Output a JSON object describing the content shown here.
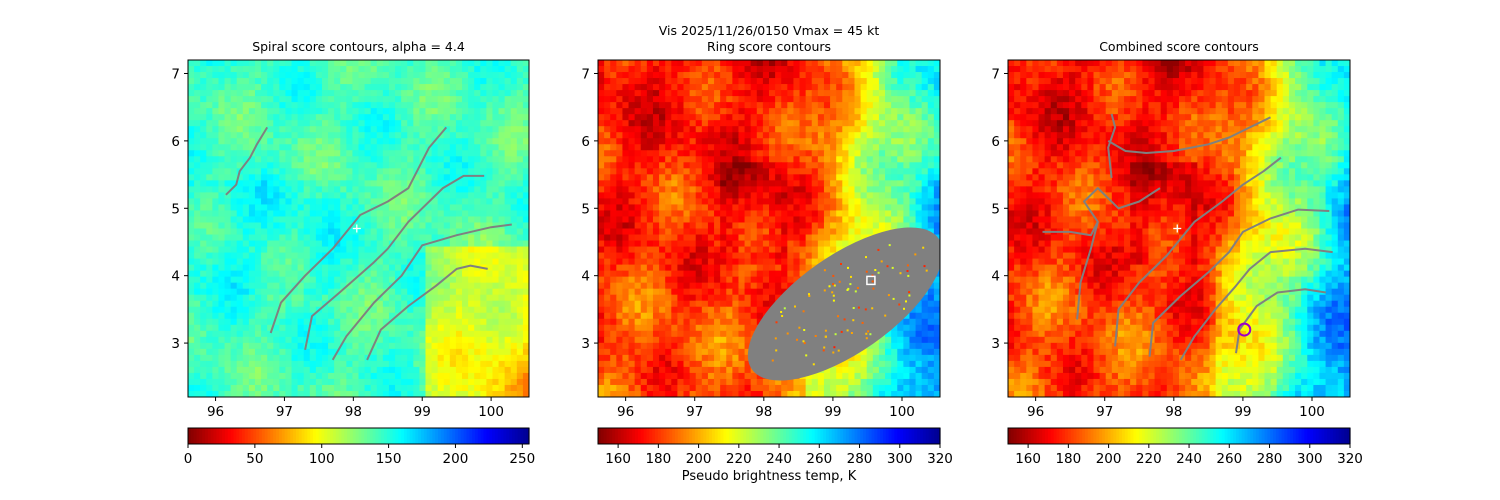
{
  "figure": {
    "suptitle": "Vis  2025/11/26/0150    Vmax = 45 kt"
  },
  "chart_data": [
    {
      "type": "heatmap",
      "id": "spiral",
      "title": "Spiral score contours, alpha =  4.4",
      "xlim": [
        95.6,
        100.55
      ],
      "ylim": [
        2.2,
        7.2
      ],
      "xticks": [
        96,
        97,
        98,
        99,
        100
      ],
      "yticks": [
        3,
        4,
        5,
        6,
        7
      ],
      "colormap": "jet_r",
      "colorbar": {
        "ticks": [
          0,
          50,
          100,
          150,
          200,
          250
        ],
        "range": [
          0,
          255
        ],
        "label": ""
      },
      "center_marker": {
        "type": "plus",
        "x": 98.05,
        "y": 4.7,
        "color": "#ffffff"
      },
      "contours": [
        [
          [
            96.15,
            5.2
          ],
          [
            96.3,
            5.35
          ],
          [
            96.35,
            5.55
          ],
          [
            96.5,
            5.75
          ],
          [
            96.6,
            5.95
          ],
          [
            96.75,
            6.2
          ]
        ],
        [
          [
            96.8,
            3.15
          ],
          [
            96.95,
            3.6
          ],
          [
            97.3,
            4.0
          ],
          [
            97.7,
            4.4
          ],
          [
            98.1,
            4.9
          ],
          [
            98.5,
            5.1
          ],
          [
            98.8,
            5.3
          ],
          [
            99.1,
            5.9
          ],
          [
            99.35,
            6.2
          ]
        ],
        [
          [
            97.3,
            2.9
          ],
          [
            97.4,
            3.4
          ],
          [
            97.8,
            3.75
          ],
          [
            98.3,
            4.2
          ],
          [
            98.5,
            4.4
          ],
          [
            98.8,
            4.8
          ],
          [
            99.3,
            5.3
          ],
          [
            99.6,
            5.48
          ],
          [
            99.9,
            5.48
          ]
        ],
        [
          [
            97.7,
            2.75
          ],
          [
            97.9,
            3.1
          ],
          [
            98.3,
            3.6
          ],
          [
            98.7,
            4.0
          ],
          [
            99.0,
            4.45
          ],
          [
            99.5,
            4.6
          ],
          [
            100.0,
            4.72
          ],
          [
            100.3,
            4.76
          ]
        ],
        [
          [
            98.2,
            2.75
          ],
          [
            98.4,
            3.2
          ],
          [
            98.8,
            3.55
          ],
          [
            99.2,
            3.85
          ],
          [
            99.5,
            4.1
          ],
          [
            99.7,
            4.15
          ],
          [
            99.95,
            4.1
          ]
        ]
      ]
    },
    {
      "type": "heatmap",
      "id": "ring",
      "title": "Ring score contours",
      "xlim": [
        95.6,
        100.55
      ],
      "ylim": [
        2.2,
        7.2
      ],
      "xticks": [
        96,
        97,
        98,
        99,
        100
      ],
      "yticks": [
        3,
        4,
        5,
        6,
        7
      ],
      "colormap": "jet_r",
      "colorbar": {
        "ticks": [
          160,
          180,
          200,
          220,
          240,
          260,
          280,
          300,
          320
        ],
        "range": [
          150,
          320
        ],
        "label": "Pseudo brightness temp, K"
      },
      "ring_region": {
        "color": "#808080",
        "center": [
          99.18,
          3.58
        ],
        "rx": 1.65,
        "ry": 0.72,
        "rotation_deg": 35
      },
      "center_marker": {
        "type": "square",
        "x": 99.55,
        "y": 3.93,
        "color": "#ffffff"
      }
    },
    {
      "type": "heatmap",
      "id": "combined",
      "title": "Combined score contours",
      "xlim": [
        95.6,
        100.55
      ],
      "ylim": [
        2.2,
        7.2
      ],
      "xticks": [
        96,
        97,
        98,
        99,
        100
      ],
      "yticks": [
        3,
        4,
        5,
        6,
        7
      ],
      "colormap": "jet_r",
      "colorbar": {
        "ticks": [
          160,
          180,
          200,
          220,
          240,
          260,
          280,
          300,
          320
        ],
        "range": [
          150,
          320
        ],
        "label": ""
      },
      "center_marker": {
        "type": "plus",
        "x": 98.05,
        "y": 4.7,
        "color": "#ffffff"
      },
      "ring_marker": {
        "type": "circle",
        "x": 99.02,
        "y": 3.2,
        "color": "#9b00c8"
      },
      "contours": [
        [
          [
            96.1,
            4.65
          ],
          [
            96.5,
            4.65
          ],
          [
            96.8,
            4.6
          ],
          [
            96.9,
            4.8
          ],
          [
            96.7,
            5.1
          ],
          [
            96.9,
            5.3
          ],
          [
            97.2,
            5.0
          ],
          [
            97.5,
            5.1
          ],
          [
            97.8,
            5.3
          ]
        ],
        [
          [
            96.6,
            3.35
          ],
          [
            96.65,
            3.9
          ],
          [
            96.8,
            4.4
          ],
          [
            96.9,
            4.8
          ]
        ],
        [
          [
            97.1,
            5.45
          ],
          [
            97.05,
            5.9
          ],
          [
            97.15,
            6.2
          ],
          [
            97.1,
            6.4
          ]
        ],
        [
          [
            97.05,
            6.0
          ],
          [
            97.3,
            5.85
          ],
          [
            97.6,
            5.82
          ],
          [
            98.0,
            5.85
          ],
          [
            98.5,
            5.95
          ],
          [
            98.8,
            6.05
          ],
          [
            99.1,
            6.2
          ],
          [
            99.4,
            6.35
          ]
        ],
        [
          [
            97.15,
            2.95
          ],
          [
            97.2,
            3.5
          ],
          [
            97.5,
            3.9
          ],
          [
            97.9,
            4.3
          ],
          [
            98.3,
            4.8
          ],
          [
            98.7,
            5.1
          ],
          [
            99.0,
            5.35
          ],
          [
            99.3,
            5.55
          ],
          [
            99.55,
            5.75
          ]
        ],
        [
          [
            97.65,
            2.8
          ],
          [
            97.7,
            3.3
          ],
          [
            98.1,
            3.7
          ],
          [
            98.5,
            4.05
          ],
          [
            98.8,
            4.35
          ],
          [
            99.0,
            4.65
          ],
          [
            99.4,
            4.85
          ],
          [
            99.8,
            4.98
          ],
          [
            100.25,
            4.96
          ]
        ],
        [
          [
            98.1,
            2.75
          ],
          [
            98.3,
            3.1
          ],
          [
            98.6,
            3.5
          ],
          [
            98.9,
            3.85
          ],
          [
            99.1,
            4.1
          ],
          [
            99.4,
            4.35
          ],
          [
            99.9,
            4.4
          ],
          [
            100.3,
            4.35
          ]
        ],
        [
          [
            98.9,
            2.85
          ],
          [
            98.95,
            3.2
          ],
          [
            99.2,
            3.55
          ],
          [
            99.5,
            3.75
          ],
          [
            99.9,
            3.8
          ],
          [
            100.2,
            3.75
          ]
        ]
      ]
    }
  ]
}
